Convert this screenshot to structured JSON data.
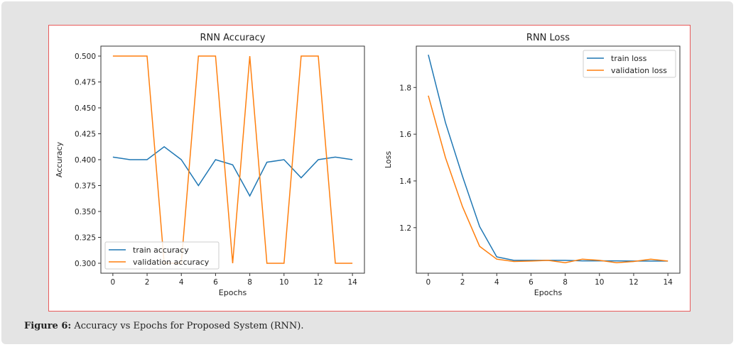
{
  "caption": {
    "label": "Figure 6:",
    "text": " Accuracy vs Epochs for Proposed System (RNN)."
  },
  "chart_data": [
    {
      "type": "line",
      "title": "RNN Accuracy",
      "xlabel": "Epochs",
      "ylabel": "Accuracy",
      "x": [
        0,
        1,
        2,
        3,
        4,
        5,
        6,
        7,
        8,
        9,
        10,
        11,
        12,
        13,
        14
      ],
      "xlim": [
        -0.7,
        14.7
      ],
      "ylim": [
        0.2904,
        0.5096
      ],
      "xticks": [
        0,
        2,
        4,
        6,
        8,
        10,
        12,
        14
      ],
      "yticks": [
        0.3,
        0.325,
        0.35,
        0.375,
        0.4,
        0.425,
        0.45,
        0.475,
        0.5
      ],
      "ytick_labels": [
        "0.300",
        "0.325",
        "0.350",
        "0.375",
        "0.400",
        "0.425",
        "0.450",
        "0.475",
        "0.500"
      ],
      "legend": "lower-left",
      "series": [
        {
          "name": "train accuracy",
          "color": "#1f77b4",
          "values": [
            0.4025,
            0.4,
            0.4,
            0.4125,
            0.4,
            0.375,
            0.4,
            0.395,
            0.365,
            0.3975,
            0.4,
            0.3825,
            0.4,
            0.4025,
            0.4
          ]
        },
        {
          "name": "validation accuracy",
          "color": "#ff7f0e",
          "values": [
            0.5,
            0.5,
            0.5,
            0.3,
            0.3,
            0.5,
            0.5,
            0.3,
            0.5,
            0.3,
            0.3,
            0.5,
            0.5,
            0.3,
            0.3
          ]
        }
      ]
    },
    {
      "type": "line",
      "title": "RNN Loss",
      "xlabel": "Epochs",
      "ylabel": "Loss",
      "x": [
        0,
        1,
        2,
        3,
        4,
        5,
        6,
        7,
        8,
        9,
        10,
        11,
        12,
        13,
        14
      ],
      "xlim": [
        -0.7,
        14.7
      ],
      "ylim": [
        1.005,
        1.977
      ],
      "xticks": [
        0,
        2,
        4,
        6,
        8,
        10,
        12,
        14
      ],
      "yticks": [
        1.2,
        1.4,
        1.6,
        1.8
      ],
      "ytick_labels": [
        "1.2",
        "1.4",
        "1.6",
        "1.8"
      ],
      "legend": "upper-right",
      "series": [
        {
          "name": "train loss",
          "color": "#1f77b4",
          "values": [
            1.94,
            1.65,
            1.42,
            1.205,
            1.075,
            1.06,
            1.06,
            1.06,
            1.06,
            1.058,
            1.058,
            1.058,
            1.057,
            1.057,
            1.057
          ]
        },
        {
          "name": "validation loss",
          "color": "#ff7f0e",
          "values": [
            1.765,
            1.5,
            1.29,
            1.12,
            1.065,
            1.055,
            1.057,
            1.06,
            1.05,
            1.065,
            1.06,
            1.05,
            1.055,
            1.065,
            1.057
          ]
        }
      ]
    }
  ]
}
